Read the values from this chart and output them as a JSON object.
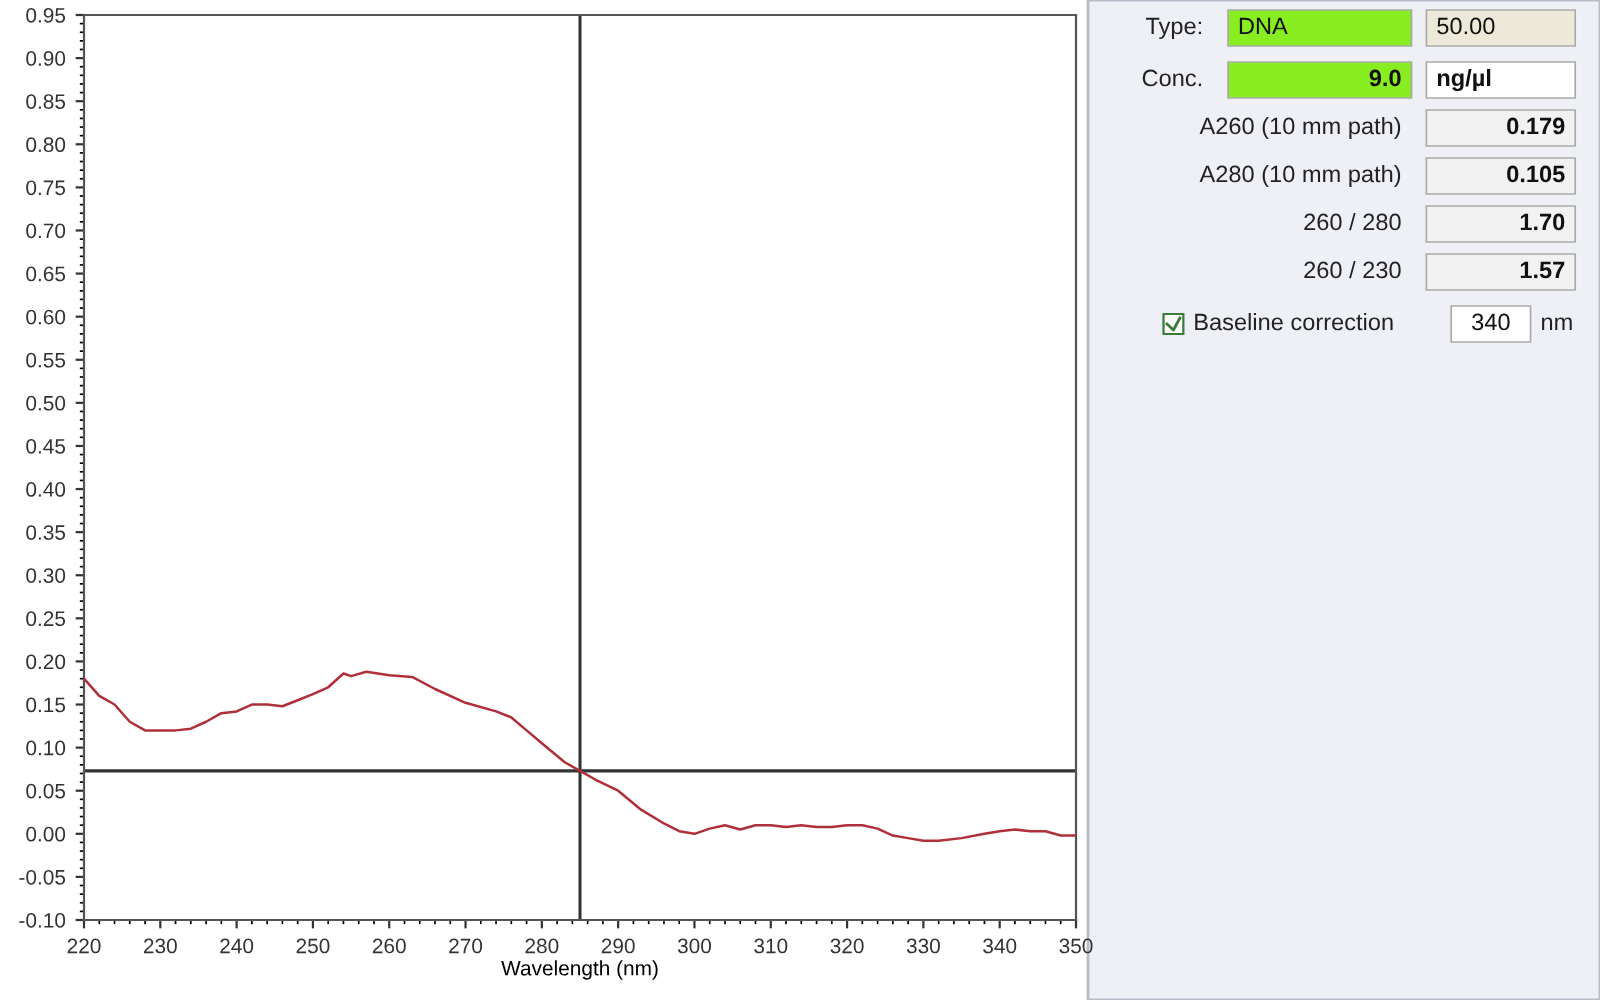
{
  "chart_data": [
    {
      "type": "line",
      "xlabel": "Wavelength (nm)",
      "xlim": [
        220,
        350
      ],
      "ylim": [
        -0.1,
        0.95
      ],
      "xticks": [
        220,
        230,
        240,
        250,
        260,
        270,
        280,
        290,
        300,
        310,
        320,
        330,
        340,
        350
      ],
      "yticks": [
        {
          "value": -0.1,
          "label": "-0.10"
        },
        {
          "value": -0.05,
          "label": "-0.05"
        },
        {
          "value": 0,
          "label": "0.00"
        },
        {
          "value": 0.05,
          "label": "0.05"
        },
        {
          "value": 0.1,
          "label": "0.10"
        },
        {
          "value": 0.15,
          "label": "0.15"
        },
        {
          "value": 0.2,
          "label": "0.20"
        },
        {
          "value": 0.25,
          "label": "0.25"
        },
        {
          "value": 0.3,
          "label": "0.30"
        },
        {
          "value": 0.35,
          "label": "0.35"
        },
        {
          "value": 0.4,
          "label": "0.40"
        },
        {
          "value": 0.45,
          "label": "0.45"
        },
        {
          "value": 0.5,
          "label": "0.50"
        },
        {
          "value": 0.55,
          "label": "0.55"
        },
        {
          "value": 0.6,
          "label": "0.60"
        },
        {
          "value": 0.65,
          "label": "0.65"
        },
        {
          "value": 0.7,
          "label": "0.70"
        },
        {
          "value": 0.75,
          "label": "0.75"
        },
        {
          "value": 0.8,
          "label": "0.80"
        },
        {
          "value": 0.85,
          "label": "0.85"
        },
        {
          "value": 0.9,
          "label": "0.90"
        },
        {
          "value": 0.95,
          "label": "0.95"
        }
      ],
      "grid": false,
      "legend": false,
      "marker": "none",
      "line_style": "solid",
      "ref_lines": [
        {
          "axis": "x",
          "value": 285,
          "color": "#333333"
        },
        {
          "axis": "y",
          "value": 0.073,
          "color": "#333333"
        }
      ],
      "series": [
        {
          "color": "#b0303a",
          "x": [
            220,
            222,
            224,
            226,
            228,
            230,
            232,
            234,
            236,
            238,
            240,
            242,
            244,
            246,
            248,
            250,
            252,
            254,
            255,
            257,
            260,
            263,
            266,
            270,
            274,
            276,
            278,
            280,
            283,
            285,
            287,
            290,
            293,
            296,
            298,
            300,
            302,
            304,
            306,
            308,
            310,
            312,
            314,
            316,
            318,
            320,
            322,
            324,
            326,
            328,
            330,
            332,
            335,
            338,
            340,
            342,
            344,
            346,
            348,
            350
          ],
          "values": [
            0.18,
            0.16,
            0.15,
            0.13,
            0.12,
            0.12,
            0.12,
            0.122,
            0.13,
            0.14,
            0.142,
            0.15,
            0.15,
            0.148,
            0.155,
            0.162,
            0.17,
            0.186,
            0.183,
            0.188,
            0.184,
            0.182,
            0.168,
            0.152,
            0.142,
            0.135,
            0.12,
            0.105,
            0.083,
            0.073,
            0.063,
            0.05,
            0.028,
            0.012,
            0.003,
            0.0,
            0.006,
            0.01,
            0.005,
            0.01,
            0.01,
            0.008,
            0.01,
            0.008,
            0.008,
            0.01,
            0.01,
            0.006,
            -0.002,
            -0.005,
            -0.008,
            -0.008,
            -0.005,
            0.0,
            0.003,
            0.005,
            0.003,
            0.003,
            -0.002,
            -0.002
          ]
        }
      ]
    },
    {
      "type": "other",
      "annotations": [
        "Type:",
        "DNA",
        "50.00",
        "Conc.",
        "9.0",
        "ng/µl",
        "A260 (10 mm path)",
        "0.179",
        "A280 (10 mm path)",
        "0.105",
        "260 / 280",
        "1.70",
        "260 / 230",
        "1.57",
        "Baseline correction",
        "340",
        "nm"
      ]
    }
  ]
}
